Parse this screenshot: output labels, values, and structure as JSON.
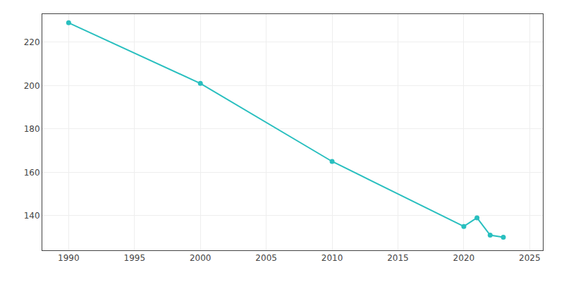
{
  "chart_data": {
    "type": "line",
    "x": [
      1990,
      2000,
      2010,
      2020,
      2021,
      2022,
      2023
    ],
    "values": [
      229,
      201,
      165,
      135,
      139,
      131,
      130
    ],
    "color": "#29BFBF",
    "marker": "circle",
    "line_style": "solid",
    "xlim": [
      1988,
      2026
    ],
    "ylim": [
      124,
      233
    ],
    "xticks": [
      1990,
      1995,
      2000,
      2005,
      2010,
      2015,
      2020,
      2025
    ],
    "yticks": [
      140,
      160,
      180,
      200,
      220
    ],
    "grid": true
  }
}
